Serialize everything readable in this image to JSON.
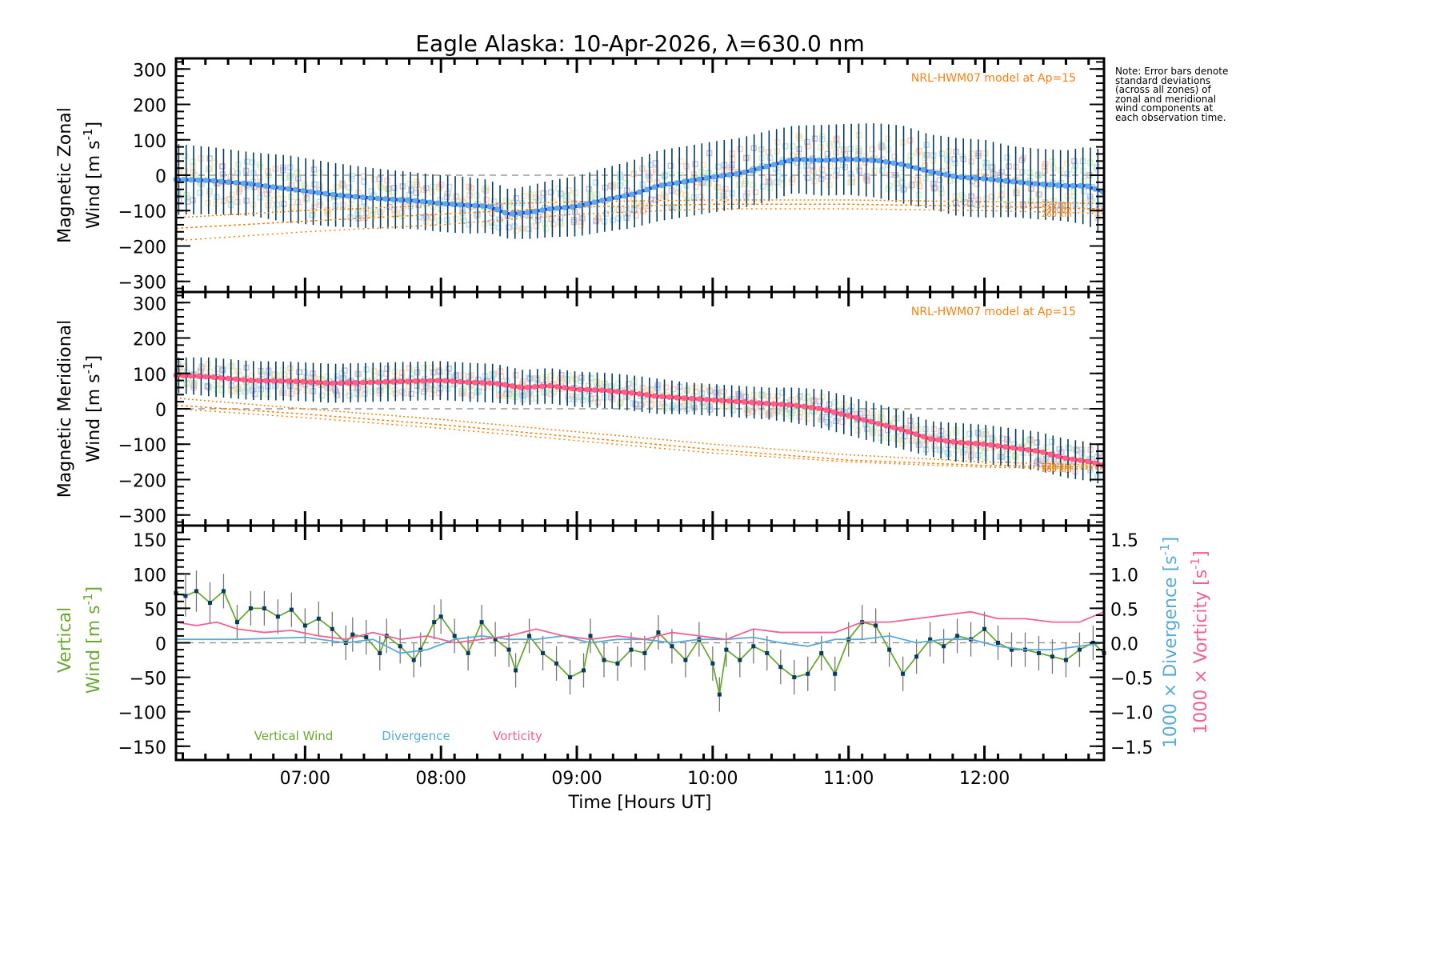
{
  "title": "Eagle Alaska: 10-Apr-2026, λ=630.0 nm",
  "note": "Note: Error bars denote standard deviations (across all zones) of zonal and meridional wind components at each observation time.",
  "colors": {
    "zonal_line": "#2a3cf0",
    "zonal_marker": "#5aaee0",
    "meridional_line": "#ff3050",
    "meridional_marker": "#ff6090",
    "errorbar": "#0a3a5a",
    "model": "#f08010",
    "vertical": "#6aa832",
    "vertical_marker": "#063a5e",
    "divergence": "#5aaad8",
    "vorticity": "#f06090",
    "zero_line": "#888888",
    "zone_scatter": [
      "#f8c0b0",
      "#f8e0a8",
      "#c8f0c0",
      "#a8d8f0",
      "#b0b0e0"
    ]
  },
  "chart_data": [
    {
      "type": "line",
      "panel": "zonal",
      "ylabel_line1": "Magnetic Zonal",
      "ylabel_line2": "Wind [m s",
      "ylabel_sup": "-1",
      "ylabel_close": "]",
      "ylim": [
        -330,
        330
      ],
      "yticks": [
        300,
        200,
        100,
        0,
        -100,
        -200,
        -300
      ],
      "xlim": [
        6.05,
        12.88
      ],
      "model_label": "NRL-HWM07 model at Ap=15",
      "model_altitudes": [
        "220 km",
        "240 km",
        "260 km"
      ],
      "series": [
        {
          "name": "Zonal wind",
          "x": [
            6.05,
            6.3,
            6.6,
            6.9,
            7.2,
            7.5,
            7.8,
            8.0,
            8.2,
            8.35,
            8.5,
            8.65,
            8.8,
            9.0,
            9.2,
            9.4,
            9.6,
            9.8,
            10.0,
            10.2,
            10.4,
            10.6,
            10.8,
            11.0,
            11.2,
            11.4,
            11.6,
            11.8,
            12.0,
            12.2,
            12.4,
            12.6,
            12.75,
            12.88
          ],
          "y": [
            -12,
            -15,
            -25,
            -40,
            -55,
            -65,
            -72,
            -80,
            -85,
            -88,
            -110,
            -105,
            -95,
            -88,
            -70,
            -55,
            -30,
            -18,
            -5,
            5,
            25,
            45,
            42,
            45,
            42,
            30,
            10,
            -5,
            -10,
            -18,
            -25,
            -30,
            -30,
            -48
          ],
          "err": [
            100,
            95,
            90,
            95,
            90,
            85,
            80,
            80,
            80,
            75,
            70,
            75,
            80,
            85,
            90,
            95,
            100,
            100,
            100,
            100,
            100,
            95,
            100,
            100,
            105,
            110,
            105,
            110,
            110,
            100,
            100,
            100,
            110,
            120
          ]
        }
      ],
      "model": [
        {
          "alt": "220 km",
          "x": [
            6.05,
            7.0,
            8.0,
            9.0,
            10.0,
            11.0,
            12.0,
            12.88
          ],
          "y": [
            -120,
            -100,
            -85,
            -75,
            -70,
            -70,
            -75,
            -80
          ]
        },
        {
          "alt": "240 km",
          "x": [
            6.05,
            7.0,
            8.0,
            9.0,
            10.0,
            11.0,
            12.0,
            12.88
          ],
          "y": [
            -150,
            -130,
            -110,
            -90,
            -82,
            -82,
            -88,
            -95
          ]
        },
        {
          "alt": "260 km",
          "x": [
            6.05,
            7.0,
            8.0,
            9.0,
            10.0,
            11.0,
            12.0,
            12.88
          ],
          "y": [
            -185,
            -160,
            -140,
            -110,
            -95,
            -95,
            -100,
            -108
          ]
        }
      ]
    },
    {
      "type": "line",
      "panel": "meridional",
      "ylabel_line1": "Magnetic Meridional",
      "ylabel_line2": "Wind [m s",
      "ylabel_sup": "-1",
      "ylabel_close": "]",
      "ylim": [
        -330,
        330
      ],
      "yticks": [
        300,
        200,
        100,
        0,
        -100,
        -200,
        -300
      ],
      "xlim": [
        6.05,
        12.88
      ],
      "model_label": "NRL-HWM07 model at Ap=15",
      "model_altitudes": [
        "220 km",
        "240 km",
        "260 km"
      ],
      "series": [
        {
          "name": "Meridional wind",
          "x": [
            6.05,
            6.3,
            6.6,
            6.9,
            7.2,
            7.5,
            7.8,
            8.0,
            8.2,
            8.4,
            8.6,
            8.8,
            9.0,
            9.2,
            9.4,
            9.6,
            9.8,
            10.0,
            10.2,
            10.4,
            10.6,
            10.8,
            11.0,
            11.2,
            11.4,
            11.6,
            11.8,
            12.0,
            12.2,
            12.4,
            12.6,
            12.75,
            12.88
          ],
          "y": [
            95,
            90,
            80,
            78,
            72,
            75,
            78,
            80,
            75,
            72,
            60,
            65,
            55,
            52,
            45,
            35,
            30,
            25,
            20,
            15,
            10,
            0,
            -20,
            -40,
            -60,
            -85,
            -95,
            -100,
            -110,
            -120,
            -140,
            -148,
            -160
          ],
          "err": [
            50,
            55,
            55,
            55,
            55,
            55,
            55,
            55,
            55,
            55,
            50,
            50,
            50,
            50,
            50,
            50,
            45,
            45,
            45,
            45,
            50,
            55,
            55,
            55,
            55,
            50,
            55,
            55,
            55,
            55,
            55,
            55,
            55
          ]
        }
      ],
      "model": [
        {
          "alt": "220 km",
          "x": [
            6.05,
            7.0,
            8.0,
            9.0,
            10.0,
            11.0,
            12.0,
            12.88
          ],
          "y": [
            30,
            0,
            -30,
            -65,
            -100,
            -130,
            -150,
            -160
          ]
        },
        {
          "alt": "240 km",
          "x": [
            6.05,
            7.0,
            8.0,
            9.0,
            10.0,
            11.0,
            12.0,
            12.88
          ],
          "y": [
            10,
            -15,
            -45,
            -80,
            -115,
            -145,
            -160,
            -165
          ]
        },
        {
          "alt": "260 km",
          "x": [
            6.05,
            7.0,
            8.0,
            9.0,
            10.0,
            11.0,
            12.0,
            12.88
          ],
          "y": [
            0,
            -25,
            -55,
            -90,
            -125,
            -150,
            -165,
            -170
          ]
        }
      ]
    },
    {
      "type": "line",
      "panel": "vertical",
      "ylabel_line1": "Vertical",
      "ylabel_line2": "Wind [m s",
      "ylabel_sup": "-1",
      "ylabel_close": "]",
      "ylim": [
        -170,
        170
      ],
      "yticks": [
        150,
        100,
        50,
        0,
        -50,
        -100,
        -150
      ],
      "y2lim": [
        -1.7,
        1.7
      ],
      "y2ticks": [
        1.5,
        1.0,
        0.5,
        0.0,
        -0.5,
        -1.0,
        -1.5
      ],
      "y2label_div": "1000 × Divergence [s",
      "y2label_vort": "1000 × Vorticity [s",
      "y2label_sup": "-1",
      "y2label_close": "]",
      "xlim": [
        6.05,
        12.88
      ],
      "xticks": [
        "07:00",
        "08:00",
        "09:00",
        "10:00",
        "11:00",
        "12:00"
      ],
      "xtick_values": [
        7,
        8,
        9,
        10,
        11,
        12
      ],
      "xlabel": "Time [Hours UT]",
      "legend": [
        "Vertical Wind",
        "Divergence",
        "Vorticity"
      ],
      "series": [
        {
          "name": "Vertical Wind",
          "x": [
            6.05,
            6.12,
            6.2,
            6.3,
            6.4,
            6.5,
            6.6,
            6.7,
            6.8,
            6.9,
            7.0,
            7.1,
            7.2,
            7.3,
            7.35,
            7.45,
            7.55,
            7.6,
            7.7,
            7.8,
            7.85,
            7.95,
            8.0,
            8.1,
            8.2,
            8.3,
            8.4,
            8.5,
            8.55,
            8.65,
            8.75,
            8.85,
            8.95,
            9.05,
            9.1,
            9.2,
            9.3,
            9.4,
            9.5,
            9.6,
            9.7,
            9.8,
            9.9,
            10.0,
            10.05,
            10.1,
            10.2,
            10.3,
            10.4,
            10.5,
            10.6,
            10.7,
            10.8,
            10.9,
            11.0,
            11.1,
            11.2,
            11.3,
            11.4,
            11.5,
            11.6,
            11.7,
            11.8,
            11.9,
            12.0,
            12.1,
            12.2,
            12.3,
            12.4,
            12.5,
            12.6,
            12.7,
            12.8,
            12.88
          ],
          "y": [
            72,
            68,
            75,
            58,
            75,
            30,
            50,
            50,
            38,
            48,
            25,
            35,
            20,
            0,
            12,
            8,
            -15,
            10,
            -5,
            -25,
            -10,
            30,
            38,
            10,
            -15,
            30,
            5,
            -10,
            -40,
            10,
            -15,
            -30,
            -50,
            -40,
            10,
            -25,
            -30,
            -10,
            -15,
            15,
            -5,
            -25,
            5,
            -30,
            -75,
            -10,
            -25,
            -5,
            -15,
            -35,
            -50,
            -45,
            -15,
            -45,
            5,
            30,
            25,
            -10,
            -45,
            -20,
            5,
            -5,
            10,
            5,
            20,
            0,
            -10,
            -10,
            -15,
            -20,
            -25,
            -10,
            0,
            -15
          ],
          "err": [
            30,
            30,
            30,
            30,
            25,
            25,
            25,
            25,
            25,
            25,
            25,
            25,
            25,
            25,
            25,
            25,
            25,
            25,
            25,
            25,
            25,
            25,
            25,
            25,
            25,
            25,
            25,
            25,
            25,
            25,
            25,
            25,
            25,
            25,
            25,
            25,
            25,
            25,
            25,
            25,
            25,
            25,
            25,
            25,
            25,
            25,
            25,
            25,
            25,
            25,
            25,
            25,
            25,
            25,
            25,
            25,
            25,
            25,
            25,
            25,
            25,
            25,
            25,
            25,
            25,
            25,
            25,
            25,
            25,
            25,
            25,
            25,
            25,
            25
          ]
        },
        {
          "name": "Divergence",
          "x": [
            6.05,
            6.5,
            7.0,
            7.3,
            7.5,
            7.7,
            7.9,
            8.1,
            8.3,
            8.5,
            8.7,
            8.9,
            9.1,
            9.3,
            9.5,
            9.7,
            9.9,
            10.1,
            10.3,
            10.5,
            10.7,
            10.9,
            11.1,
            11.3,
            11.5,
            11.7,
            11.9,
            12.1,
            12.3,
            12.5,
            12.7,
            12.88
          ],
          "y": [
            0.05,
            0.05,
            0.08,
            0.0,
            0.05,
            -0.15,
            -0.1,
            0.05,
            0.1,
            0.05,
            0.05,
            0.1,
            0.0,
            0.05,
            0.05,
            0.0,
            0.05,
            0.05,
            0.08,
            0.0,
            -0.05,
            0.05,
            0.05,
            0.1,
            0.0,
            0.05,
            0.05,
            -0.05,
            -0.1,
            -0.1,
            -0.05,
            0.0
          ]
        },
        {
          "name": "Vorticity",
          "x": [
            6.05,
            6.2,
            6.35,
            6.5,
            6.7,
            6.9,
            7.1,
            7.3,
            7.5,
            7.7,
            7.9,
            8.1,
            8.3,
            8.5,
            8.7,
            8.9,
            9.1,
            9.3,
            9.5,
            9.7,
            9.9,
            10.1,
            10.3,
            10.5,
            10.7,
            10.9,
            11.1,
            11.3,
            11.5,
            11.7,
            11.9,
            12.1,
            12.3,
            12.5,
            12.7,
            12.88
          ],
          "y": [
            0.3,
            0.25,
            0.3,
            0.2,
            0.15,
            0.18,
            0.1,
            0.05,
            0.15,
            0.05,
            0.1,
            0.0,
            0.05,
            0.1,
            0.2,
            0.1,
            0.05,
            0.1,
            0.05,
            0.15,
            0.1,
            0.05,
            0.2,
            0.15,
            0.15,
            0.15,
            0.3,
            0.3,
            0.35,
            0.4,
            0.45,
            0.35,
            0.35,
            0.3,
            0.3,
            0.45
          ]
        }
      ]
    }
  ]
}
